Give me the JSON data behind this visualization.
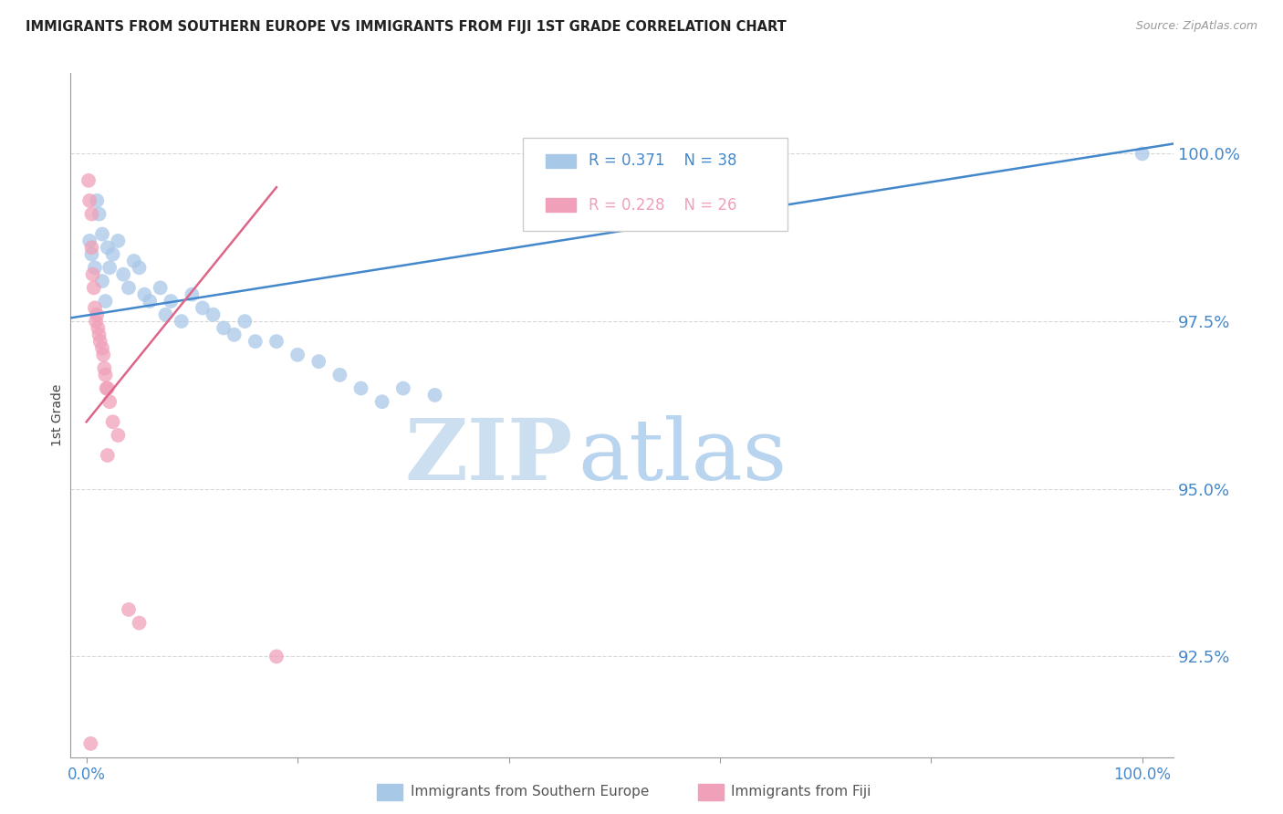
{
  "title": "IMMIGRANTS FROM SOUTHERN EUROPE VS IMMIGRANTS FROM FIJI 1ST GRADE CORRELATION CHART",
  "source": "Source: ZipAtlas.com",
  "ylabel": "1st Grade",
  "x_axis_label_left": "0.0%",
  "x_axis_label_right": "100.0%",
  "y_tick_values": [
    100.0,
    97.5,
    95.0,
    92.5
  ],
  "y_min": 91.0,
  "y_max": 101.2,
  "x_min": -1.5,
  "x_max": 103.0,
  "legend_blue_r": "R = 0.371",
  "legend_blue_n": "N = 38",
  "legend_pink_r": "R = 0.228",
  "legend_pink_n": "N = 26",
  "legend_blue_label": "Immigrants from Southern Europe",
  "legend_pink_label": "Immigrants from Fiji",
  "blue_color": "#a8c8e8",
  "pink_color": "#f0a0b8",
  "blue_line_color": "#4488cc",
  "pink_line_color": "#dd6688",
  "tick_label_color": "#4488cc",
  "grid_color": "#cccccc",
  "watermark_zip": "ZIP",
  "watermark_atlas": "atlas",
  "watermark_color": "#ddeeff",
  "blue_scatter_x": [
    0.3,
    0.5,
    0.8,
    1.0,
    1.2,
    1.5,
    1.5,
    1.8,
    2.0,
    2.2,
    2.5,
    3.0,
    3.5,
    4.0,
    4.5,
    5.0,
    5.5,
    6.0,
    7.0,
    7.5,
    8.0,
    9.0,
    10.0,
    11.0,
    12.0,
    13.0,
    14.0,
    15.0,
    16.0,
    18.0,
    20.0,
    22.0,
    24.0,
    26.0,
    28.0,
    30.0,
    33.0,
    100.0
  ],
  "blue_scatter_y": [
    98.7,
    98.5,
    98.3,
    99.3,
    99.1,
    98.8,
    98.1,
    97.8,
    98.6,
    98.3,
    98.5,
    98.7,
    98.2,
    98.0,
    98.4,
    98.3,
    97.9,
    97.8,
    98.0,
    97.6,
    97.8,
    97.5,
    97.9,
    97.7,
    97.6,
    97.4,
    97.3,
    97.5,
    97.2,
    97.2,
    97.0,
    96.9,
    96.7,
    96.5,
    96.3,
    96.5,
    96.4,
    100.0
  ],
  "pink_scatter_x": [
    0.2,
    0.3,
    0.5,
    0.5,
    0.6,
    0.7,
    0.8,
    0.9,
    1.0,
    1.1,
    1.2,
    1.3,
    1.5,
    1.6,
    1.7,
    1.8,
    1.9,
    2.0,
    2.2,
    2.5,
    3.0,
    4.0,
    5.0,
    2.0,
    18.0,
    0.4
  ],
  "pink_scatter_y": [
    99.6,
    99.3,
    99.1,
    98.6,
    98.2,
    98.0,
    97.7,
    97.5,
    97.6,
    97.4,
    97.3,
    97.2,
    97.1,
    97.0,
    96.8,
    96.7,
    96.5,
    96.5,
    96.3,
    96.0,
    95.8,
    93.2,
    93.0,
    95.5,
    92.5,
    91.2
  ],
  "blue_line_x": [
    -1.5,
    103.0
  ],
  "blue_line_y": [
    97.55,
    100.15
  ],
  "pink_line_x": [
    0.0,
    18.0
  ],
  "pink_line_y": [
    96.0,
    99.5
  ]
}
